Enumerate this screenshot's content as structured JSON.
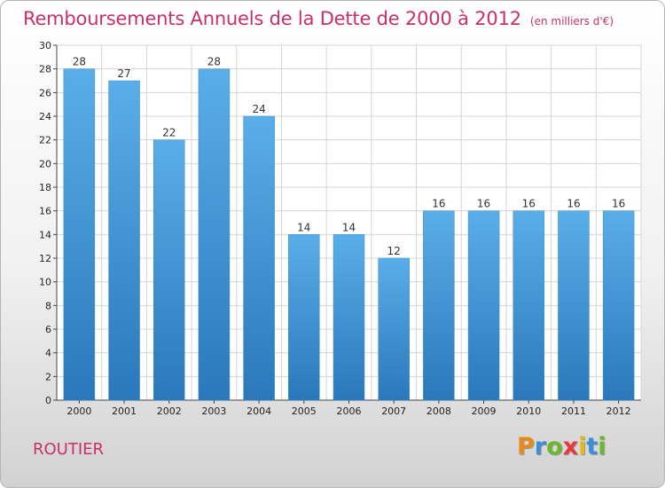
{
  "header": {
    "title": "Remboursements Annuels de la Dette de 2000 à 2012",
    "subtitle": "(en milliers d'€)"
  },
  "footer": {
    "commune": "ROUTIER",
    "logo": {
      "text": "Proxiti",
      "letters": [
        "P",
        "r",
        "o",
        "x",
        "i",
        "t",
        "i"
      ],
      "colors": [
        "#e88a1a",
        "#3a8fd8",
        "#6bb82e",
        "#e83a3a",
        "#e8b81a",
        "#3a8fd8",
        "#6bb82e"
      ]
    }
  },
  "colors": {
    "title": "#c9306a",
    "bar_top": "#5aaee8",
    "bar_bottom": "#2a78bb",
    "grid": "#d5d5d5"
  },
  "chart_data": {
    "type": "bar",
    "title": "Remboursements Annuels de la Dette de 2000 à 2012",
    "subtitle": "(en milliers d'€)",
    "categories": [
      "2000",
      "2001",
      "2002",
      "2003",
      "2004",
      "2005",
      "2006",
      "2007",
      "2008",
      "2009",
      "2010",
      "2011",
      "2012"
    ],
    "values": [
      28,
      27,
      22,
      28,
      24,
      14,
      14,
      12,
      16,
      16,
      16,
      16,
      16
    ],
    "xlabel": "",
    "ylabel": "",
    "ylim": [
      0,
      30
    ],
    "yticks": [
      0,
      2,
      4,
      6,
      8,
      10,
      12,
      14,
      16,
      18,
      20,
      22,
      24,
      26,
      28,
      30
    ],
    "grid": true,
    "legend": "none"
  }
}
